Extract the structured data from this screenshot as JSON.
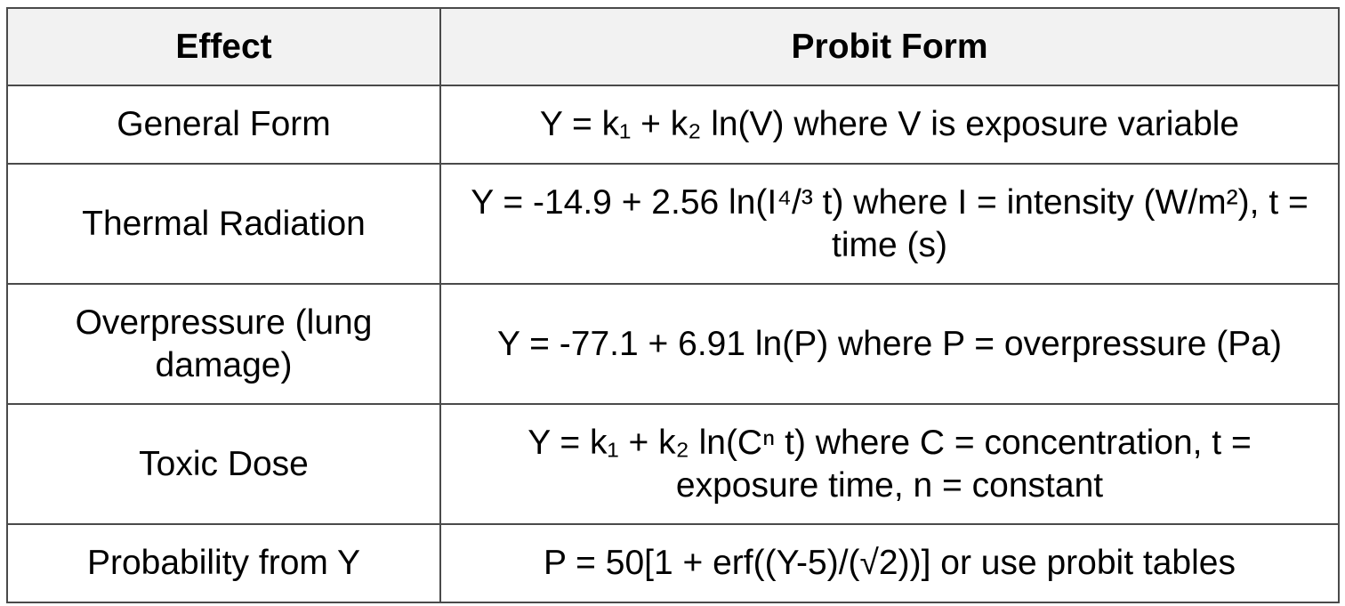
{
  "table": {
    "headers": {
      "effect": "Effect",
      "probit_form": "Probit Form"
    },
    "rows": [
      {
        "effect": "General Form",
        "probit_form": "Y = k₁ + k₂ ln(V) where V is exposure variable"
      },
      {
        "effect": "Thermal Radiation",
        "probit_form": "Y = -14.9 + 2.56 ln(I⁴/³ t) where I = intensity (W/m²), t = time (s)"
      },
      {
        "effect": "Overpressure (lung damage)",
        "probit_form": "Y = -77.1 + 6.91 ln(P) where P = overpressure (Pa)"
      },
      {
        "effect": "Toxic Dose",
        "probit_form": "Y = k₁ + k₂ ln(Cⁿ t) where C = concentration, t = exposure time, n = constant"
      },
      {
        "effect": "Probability from Y",
        "probit_form": "P = 50[1 + erf((Y-5)/(√2))] or use probit tables"
      }
    ]
  }
}
